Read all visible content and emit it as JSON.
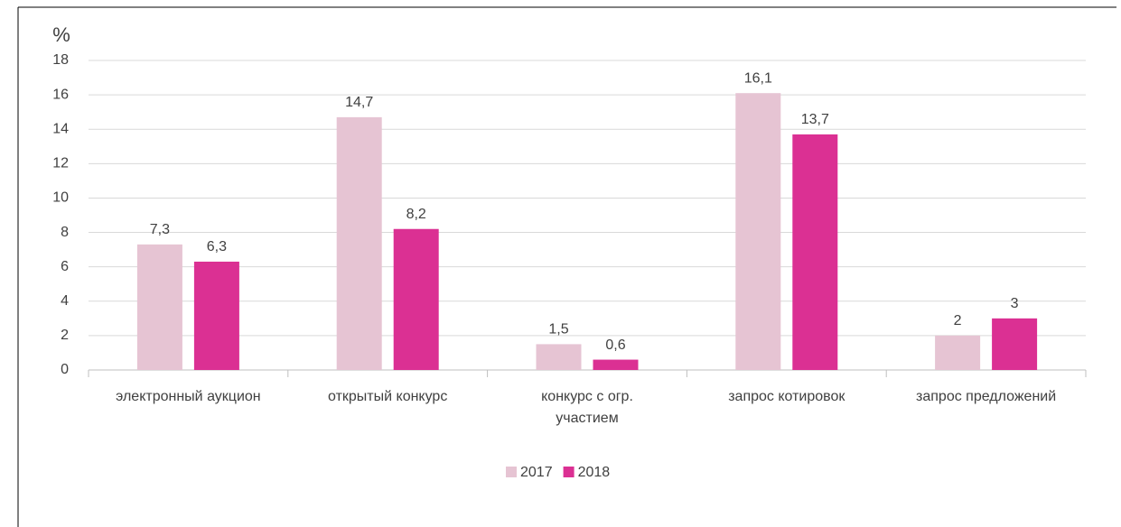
{
  "chart_data": {
    "type": "bar",
    "y_label": "%",
    "categories": [
      "электронный аукцион",
      "открытый конкурс",
      "конкурс с огр. участием",
      "запрос котировок",
      "запрос предложений"
    ],
    "series": [
      {
        "name": "2017",
        "color": "#e6c4d3",
        "values": [
          7.3,
          14.7,
          1.5,
          16.1,
          2
        ],
        "value_labels": [
          "7,3",
          "14,7",
          "1,5",
          "16,1",
          "2"
        ]
      },
      {
        "name": "2018",
        "color": "#db3093",
        "values": [
          6.3,
          8.2,
          0.6,
          13.7,
          3
        ],
        "value_labels": [
          "6,3",
          "8,2",
          "0,6",
          "13,7",
          "3"
        ]
      }
    ],
    "ylim": [
      0,
      18
    ],
    "yticks": [
      0,
      2,
      4,
      6,
      8,
      10,
      12,
      14,
      16,
      18
    ],
    "grid": true,
    "legend": "bottom"
  }
}
